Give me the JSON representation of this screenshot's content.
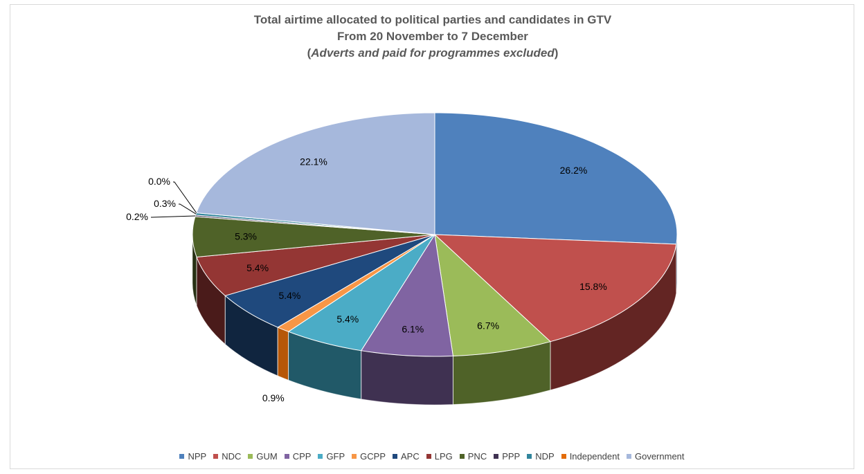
{
  "chart_data": {
    "type": "pie",
    "title_line1": "Total airtime allocated to political parties and candidates in GTV",
    "title_line2": "From 20 November to 7 December",
    "title_line3_open": "(",
    "title_line3_italic": "Adverts and paid for programmes excluded",
    "title_line3_close": ")",
    "legend_position": "bottom",
    "is_3d": true,
    "slices": [
      {
        "name": "NPP",
        "value": 26.2,
        "label": "26.2%",
        "color": "#4F81BD",
        "side": "#2C4D75"
      },
      {
        "name": "NDC",
        "value": 15.8,
        "label": "15.8%",
        "color": "#C0504D",
        "side": "#632523"
      },
      {
        "name": "GUM",
        "value": 6.7,
        "label": "6.7%",
        "color": "#9BBB59",
        "side": "#4F6228"
      },
      {
        "name": "CPP",
        "value": 6.1,
        "label": "6.1%",
        "color": "#8064A2",
        "side": "#3F3151"
      },
      {
        "name": "GFP",
        "value": 5.4,
        "label": "5.4%",
        "color": "#4BACC6",
        "side": "#215968"
      },
      {
        "name": "GCPP",
        "value": 0.9,
        "label": "0.9%",
        "color": "#F79646",
        "side": "#B65708"
      },
      {
        "name": "APC",
        "value": 5.4,
        "label": "5.4%",
        "color": "#1F497D",
        "side": "#10253F"
      },
      {
        "name": "LPG",
        "value": 5.4,
        "label": "5.4%",
        "color": "#943634",
        "side": "#4A1B1A"
      },
      {
        "name": "PNC",
        "value": 5.3,
        "label": "5.3%",
        "color": "#4F6228",
        "side": "#283114"
      },
      {
        "name": "PPP",
        "value": 0.2,
        "label": "0.2%",
        "color": "#3F3151",
        "side": "#201828"
      },
      {
        "name": "NDP",
        "value": 0.3,
        "label": "0.3%",
        "color": "#31859C",
        "side": "#18424E"
      },
      {
        "name": "Independent",
        "value": 0.0,
        "label": "0.0%",
        "color": "#E36C09",
        "side": "#713605"
      },
      {
        "name": "Government",
        "value": 22.1,
        "label": "22.1%",
        "color": "#A6B8DC",
        "side": "#5B6E96"
      }
    ]
  }
}
